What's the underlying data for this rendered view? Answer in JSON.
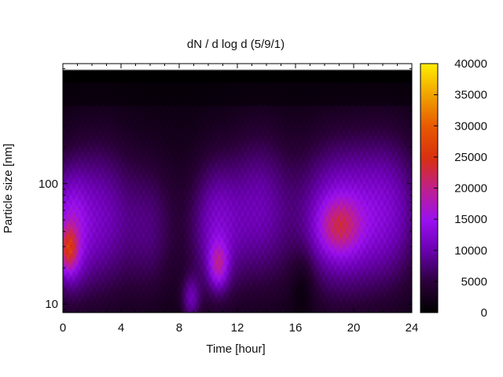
{
  "chart_data": {
    "type": "heatmap",
    "title": "dN / d log d (5/9/1)",
    "xlabel": "Time [hour]",
    "ylabel": "Particle size [nm]",
    "xlim": [
      0,
      24
    ],
    "x_ticks": [
      0,
      4,
      8,
      12,
      16,
      20,
      24
    ],
    "y_scale": "log",
    "y_ticks": [
      10,
      100
    ],
    "colorbar": {
      "range": [
        0,
        40000
      ],
      "ticks": [
        0,
        5000,
        10000,
        15000,
        20000,
        25000,
        30000,
        35000,
        40000
      ],
      "colormap": "gnuplot (black-purple-red-yellow)"
    },
    "features": [
      {
        "time": 0.4,
        "size_nm": 28,
        "value": 22000
      },
      {
        "time": 8.8,
        "size_nm": 11,
        "value": 17000
      },
      {
        "time": 10.7,
        "size_nm": 21,
        "value": 20000
      },
      {
        "time": 19.0,
        "size_nm": 44,
        "value": 19000
      }
    ],
    "grid": false,
    "legend": "none"
  }
}
